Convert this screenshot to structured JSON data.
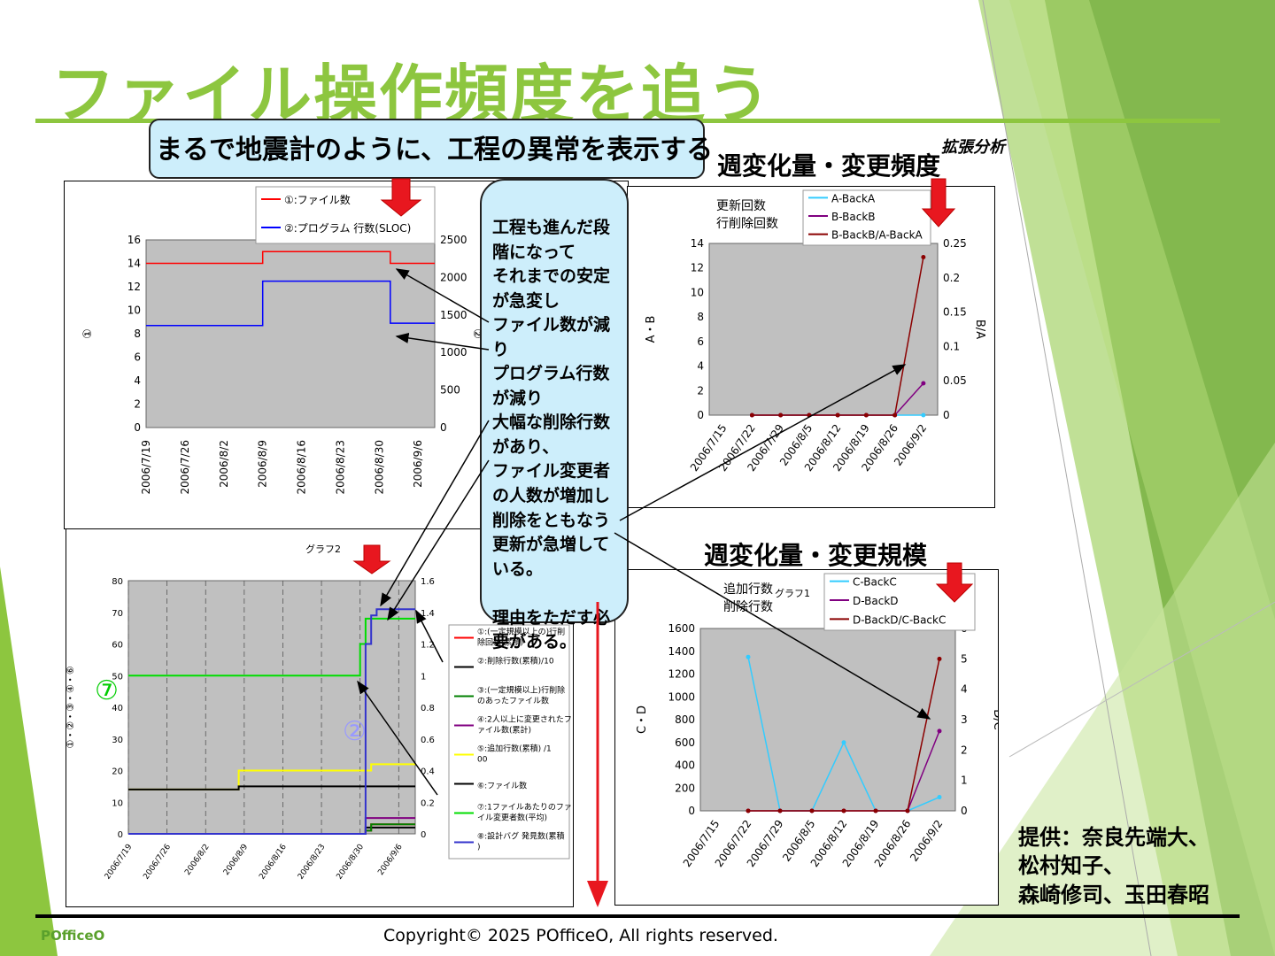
{
  "slide": {
    "title": "ファイル操作頻度を追う",
    "banner": "まるで地震計のように、工程の異常を表示する",
    "center_note": "工程も進んだ段階になって\nそれまでの安定が急変し\nファイル数が減り\nプログラム行数が減り\n大幅な削除行数があり、\nファイル変更者の人数が増加し\n削除をともなう更新が急増している。\n\n理由をただす必要がある。",
    "heading_freq": "週変化量・変更頻度",
    "heading_scale": "週変化量・変更規模",
    "kakucho": "拡張分析",
    "credit": [
      "提供：奈良先端大、",
      "松村知子、",
      "森崎修司、玉田春昭"
    ],
    "copyright": "Copyright© 2025  POfficeO, All rights reserved.",
    "brand": "POfficeO",
    "colors": {
      "accent": "#8dc63f",
      "callout": "#cdeefb",
      "plot_bg": "#c0c0c0",
      "arrow_red": "#e8171f"
    }
  },
  "chart_data": [
    {
      "type": "line",
      "x_ticks": [
        "2006/7/19",
        "2006/7/26",
        "2006/8/2",
        "2006/8/9",
        "2006/8/16",
        "2006/8/23",
        "2006/8/30",
        "2006/9/6"
      ],
      "ylim": [
        0,
        16
      ],
      "y_ticks": [
        "0",
        "2",
        "4",
        "6",
        "8",
        "10",
        "12",
        "14",
        "16"
      ],
      "ylabel": "①",
      "y2lim": [
        0,
        2500
      ],
      "y2_ticks": [
        "0",
        "500",
        "1000",
        "1500",
        "2000",
        "2500"
      ],
      "y2label": "②",
      "series": [
        {
          "name": "①:ファイル数",
          "axis": "left",
          "color": "#ff0000",
          "x": [
            "2006/7/19",
            "2006/8/9",
            "2006/8/9",
            "2006/9/1",
            "2006/9/1",
            "2006/9/9"
          ],
          "values": [
            14,
            14,
            15,
            15,
            14,
            14
          ]
        },
        {
          "name": "②:プログラム 行数(SLOC)",
          "axis": "right",
          "color": "#0000ff",
          "x": [
            "2006/7/19",
            "2006/8/9",
            "2006/8/9",
            "2006/9/1",
            "2006/9/1",
            "2006/9/9"
          ],
          "values": [
            1360,
            1360,
            1950,
            1950,
            1390,
            1390
          ]
        }
      ]
    },
    {
      "type": "line",
      "title": "グラフ2",
      "x_ticks": [
        "2006/7/19",
        "2006/7/26",
        "2006/8/2",
        "2006/8/9",
        "2006/8/16",
        "2006/8/23",
        "2006/8/30",
        "2006/9/6"
      ],
      "ylim": [
        0,
        80
      ],
      "y_ticks": [
        "0",
        "10",
        "20",
        "30",
        "40",
        "50",
        "60",
        "70",
        "80"
      ],
      "ylabel": "①・②・③・④・⑥",
      "y2lim": [
        0,
        1.6
      ],
      "y2_ticks": [
        "0",
        "0.2",
        "0.4",
        "0.6",
        "0.8",
        "1",
        "1.2",
        "1.4",
        "1.6"
      ],
      "y2label": "⑦・⑧",
      "annotations": [
        "⑦",
        "②"
      ],
      "series": [
        {
          "name": "①:(一定規模以上の)行削除回数(累積)",
          "axis": "left",
          "color": "#ff0000",
          "x": [
            "2006/7/19",
            "2006/8/31",
            "2006/8/31",
            "2006/9/1",
            "2006/9/1",
            "2006/9/9"
          ],
          "values": [
            0,
            0,
            1,
            1,
            3,
            3
          ]
        },
        {
          "name": "②:削除行数(累積)/10",
          "axis": "left",
          "color": "#000000",
          "x": [
            "2006/7/19",
            "2006/8/31",
            "2006/8/31",
            "2006/9/9"
          ],
          "values": [
            0,
            0,
            2,
            2
          ]
        },
        {
          "name": "③:(一定規模以上)行削除のあったファイル数",
          "axis": "left",
          "color": "#008000",
          "x": [
            "2006/7/19",
            "2006/8/31",
            "2006/8/31",
            "2006/9/1",
            "2006/9/1",
            "2006/9/9"
          ],
          "values": [
            0,
            0,
            1,
            1,
            3,
            3
          ]
        },
        {
          "name": "④:2人以上に変更されたファイル数(累計)",
          "axis": "left",
          "color": "#800080",
          "x": [
            "2006/7/19",
            "2006/8/31",
            "2006/8/31",
            "2006/9/9"
          ],
          "values": [
            0,
            0,
            5,
            5
          ]
        },
        {
          "name": "⑤:追加行数(累積) /100",
          "axis": "left",
          "color": "#ffff00",
          "x": [
            "2006/7/19",
            "2006/8/8",
            "2006/8/8",
            "2006/8/31",
            "2006/8/31",
            "2006/9/1",
            "2006/9/1",
            "2006/9/9"
          ],
          "values": [
            14,
            14,
            20,
            20,
            20,
            20,
            22,
            22
          ]
        },
        {
          "name": "⑥:ファイル数",
          "axis": "left",
          "color": "#000000",
          "x": [
            "2006/7/19",
            "2006/8/8",
            "2006/8/8",
            "2006/9/9"
          ],
          "values": [
            14,
            14,
            15,
            15
          ]
        },
        {
          "name": "⑦:1ファイルあたりのファイル変更者数(平均)",
          "axis": "right",
          "color": "#00dd00",
          "x": [
            "2006/7/19",
            "2006/8/30",
            "2006/8/30",
            "2006/8/31",
            "2006/8/31",
            "2006/9/9"
          ],
          "values": [
            1.0,
            1.0,
            1.2,
            1.2,
            1.36,
            1.36
          ]
        },
        {
          "name": "⑧:設計バグ 発見数(累積)",
          "axis": "right",
          "color": "#3333cc",
          "x": [
            "2006/7/19",
            "2006/8/31",
            "2006/8/31",
            "2006/9/1",
            "2006/9/1",
            "2006/9/2",
            "2006/9/2",
            "2006/9/9"
          ],
          "values": [
            0,
            0,
            1.2,
            1.2,
            1.38,
            1.38,
            1.42,
            1.42
          ]
        }
      ]
    },
    {
      "type": "line",
      "y_title": [
        "更新回数",
        "行削除回数"
      ],
      "x_ticks": [
        "2006/7/15",
        "2006/7/22",
        "2006/7/29",
        "2006/8/5",
        "2006/8/12",
        "2006/8/19",
        "2006/8/26",
        "2006/9/2"
      ],
      "ylim": [
        0,
        14
      ],
      "y_ticks": [
        "0",
        "2",
        "4",
        "6",
        "8",
        "10",
        "12",
        "14"
      ],
      "ylabel": "A・B",
      "y2lim": [
        0,
        0.25
      ],
      "y2_ticks": [
        "0",
        "0.05",
        "0.1",
        "0.15",
        "0.2",
        "0.25"
      ],
      "y2label": "B/A",
      "series": [
        {
          "name": "A-BackA",
          "axis": "left",
          "color": "#33ccff",
          "x": [
            "2006/7/22",
            "2006/7/29",
            "2006/8/5",
            "2006/8/12",
            "2006/8/19",
            "2006/8/26",
            "2006/9/2"
          ],
          "values": [
            0,
            0,
            0,
            0,
            0,
            0,
            0
          ]
        },
        {
          "name": "B-BackB",
          "axis": "left",
          "color": "#800080",
          "x": [
            "2006/7/22",
            "2006/7/29",
            "2006/8/5",
            "2006/8/12",
            "2006/8/19",
            "2006/8/26",
            "2006/9/2"
          ],
          "values": [
            0,
            0,
            0,
            0,
            0,
            0,
            2.6
          ]
        },
        {
          "name": "B-BackB/A-BackA",
          "axis": "right",
          "color": "#8b0000",
          "x": [
            "2006/7/22",
            "2006/7/29",
            "2006/8/5",
            "2006/8/12",
            "2006/8/19",
            "2006/8/26",
            "2006/9/2"
          ],
          "values": [
            0,
            0,
            0,
            0,
            0,
            0,
            0.23
          ]
        }
      ]
    },
    {
      "type": "line",
      "title": "グラフ1",
      "y_title": [
        "追加行数",
        "削除行数"
      ],
      "x_ticks": [
        "2006/7/15",
        "2006/7/22",
        "2006/7/29",
        "2006/8/5",
        "2006/8/12",
        "2006/8/19",
        "2006/8/26",
        "2006/9/2"
      ],
      "ylim": [
        0,
        1600
      ],
      "y_ticks": [
        "0",
        "200",
        "400",
        "600",
        "800",
        "1000",
        "1200",
        "1400",
        "1600"
      ],
      "ylabel": "C・D",
      "y2lim": [
        0,
        6
      ],
      "y2_ticks": [
        "0",
        "1",
        "2",
        "3",
        "4",
        "5",
        "6"
      ],
      "y2label": "D/C",
      "series": [
        {
          "name": "C-BackC",
          "axis": "left",
          "color": "#33ccff",
          "x": [
            "2006/7/22",
            "2006/7/29",
            "2006/8/5",
            "2006/8/12",
            "2006/8/19",
            "2006/8/26",
            "2006/9/2"
          ],
          "values": [
            1350,
            0,
            0,
            600,
            0,
            0,
            120
          ]
        },
        {
          "name": "D-BackD",
          "axis": "left",
          "color": "#800080",
          "x": [
            "2006/7/22",
            "2006/7/29",
            "2006/8/5",
            "2006/8/12",
            "2006/8/19",
            "2006/8/26",
            "2006/9/2"
          ],
          "values": [
            0,
            0,
            0,
            0,
            0,
            0,
            700
          ]
        },
        {
          "name": "D-BackD/C-BackC",
          "axis": "right",
          "color": "#8b0000",
          "x": [
            "2006/7/22",
            "2006/7/29",
            "2006/8/5",
            "2006/8/12",
            "2006/8/19",
            "2006/8/26",
            "2006/9/2"
          ],
          "values": [
            0,
            0,
            0,
            0,
            0,
            0,
            5
          ]
        }
      ]
    }
  ]
}
